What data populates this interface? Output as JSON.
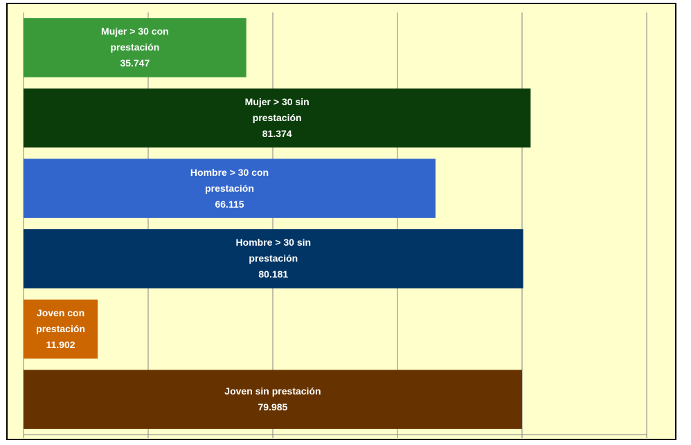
{
  "chart_data": {
    "type": "barh",
    "categories": [
      "Mujer > 30 con prestación",
      "Mujer > 30 sin prestación",
      "Hombre > 30 con prestación",
      "Hombre > 30 sin prestación",
      "Joven con prestación",
      "Joven sin prestación"
    ],
    "values": [
      35747,
      81374,
      66115,
      80181,
      11902,
      79985
    ],
    "value_labels": [
      "35.747",
      "81.374",
      "66.115",
      "80.181",
      "11.902",
      "79.985"
    ],
    "colors": [
      "#3a9a3a",
      "#0b3d0b",
      "#3366cc",
      "#013565",
      "#cc6600",
      "#663300"
    ],
    "xlim": [
      0,
      100000
    ],
    "xticks": [
      0,
      20000,
      40000,
      60000,
      80000,
      100000
    ],
    "grid": true
  }
}
